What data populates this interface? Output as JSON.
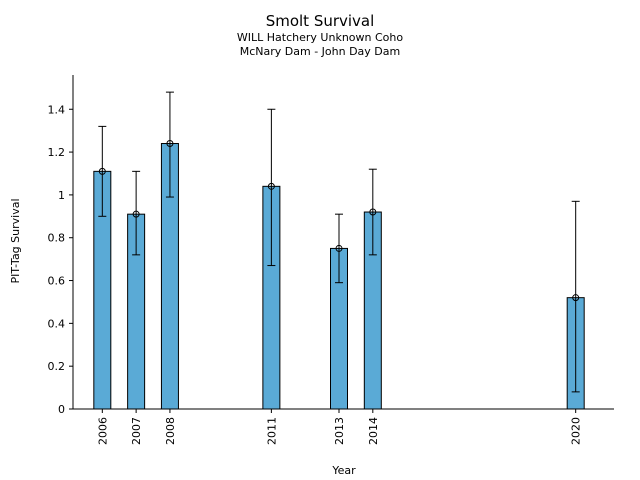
{
  "chart_data": {
    "type": "bar",
    "title": "Smolt Survival",
    "subtitle": [
      "WILL Hatchery Unknown Coho",
      "McNary Dam - John Day Dam"
    ],
    "xlabel": "Year",
    "ylabel": "PIT-Tag Survival",
    "categories": [
      "2006",
      "2007",
      "2008",
      "2011",
      "2013",
      "2014",
      "2020"
    ],
    "x": [
      2006,
      2007,
      2008,
      2011,
      2013,
      2014,
      2020
    ],
    "values": [
      1.11,
      0.91,
      1.24,
      1.04,
      0.75,
      0.92,
      0.52
    ],
    "error_low": [
      0.9,
      0.72,
      0.99,
      0.67,
      0.59,
      0.72,
      0.08
    ],
    "error_high": [
      1.32,
      1.11,
      1.48,
      1.4,
      0.91,
      1.12,
      0.97
    ],
    "ylim": [
      0,
      1.56
    ],
    "yticks": [
      0,
      0.2,
      0.4,
      0.6,
      0.8,
      1,
      1.2,
      1.4
    ],
    "ytick_labels": [
      "0",
      "0.2",
      "0.4",
      "0.6",
      "0.8",
      "1",
      "1.2",
      "1.4"
    ],
    "bar_color": "#5aaad6",
    "grid": false
  }
}
